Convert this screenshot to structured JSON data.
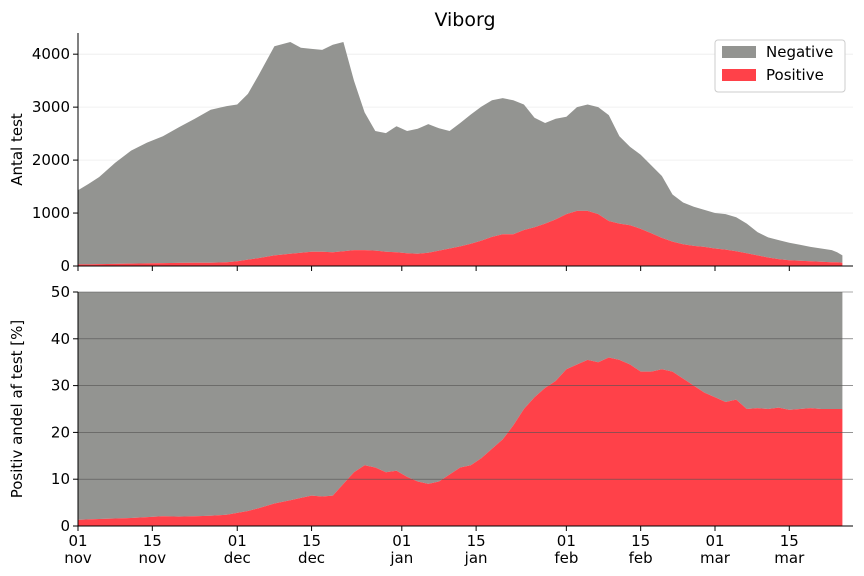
{
  "chart_data": [
    {
      "type": "area",
      "title": "Viborg",
      "ylabel": "Antal test",
      "ylim": [
        0,
        4400
      ],
      "yticks": [
        0,
        1000,
        2000,
        3000,
        4000
      ],
      "xlim": [
        0,
        146
      ],
      "legend": {
        "placement": "top-right",
        "entries": [
          "Negative",
          "Positive"
        ]
      },
      "x": [
        0,
        2,
        4,
        7,
        10,
        13,
        16,
        19,
        22,
        25,
        28,
        30,
        32,
        34,
        37,
        40,
        42,
        44,
        46,
        48,
        50,
        52,
        54,
        56,
        58,
        60,
        62,
        64,
        66,
        68,
        70,
        72,
        74,
        76,
        78,
        80,
        82,
        84,
        86,
        88,
        90,
        92,
        94,
        96,
        98,
        100,
        102,
        104,
        106,
        108,
        110,
        112,
        114,
        116,
        118,
        120,
        122,
        124,
        126,
        128,
        130,
        132,
        134,
        136,
        138,
        140,
        142,
        143,
        144
      ],
      "series": [
        {
          "name": "Positive",
          "color": "#ff4149",
          "values": [
            30,
            30,
            35,
            40,
            45,
            50,
            55,
            58,
            60,
            62,
            70,
            90,
            120,
            150,
            200,
            230,
            250,
            270,
            270,
            260,
            280,
            300,
            300,
            290,
            270,
            260,
            240,
            230,
            250,
            290,
            330,
            370,
            420,
            480,
            550,
            600,
            600,
            680,
            730,
            800,
            880,
            980,
            1040,
            1040,
            980,
            850,
            800,
            770,
            700,
            620,
            530,
            460,
            410,
            380,
            360,
            330,
            310,
            280,
            240,
            200,
            160,
            130,
            110,
            100,
            90,
            80,
            70,
            70,
            60
          ]
        },
        {
          "name": "Negative",
          "color": "#939491",
          "total": [
            1430,
            1550,
            1680,
            1950,
            2180,
            2330,
            2450,
            2620,
            2780,
            2950,
            3020,
            3050,
            3250,
            3600,
            4150,
            4230,
            4120,
            4100,
            4080,
            4180,
            4230,
            3500,
            2900,
            2550,
            2510,
            2640,
            2550,
            2590,
            2680,
            2600,
            2550,
            2700,
            2860,
            3010,
            3130,
            3170,
            3130,
            3050,
            2800,
            2700,
            2780,
            2820,
            3000,
            3050,
            3000,
            2850,
            2450,
            2250,
            2100,
            1900,
            1700,
            1350,
            1200,
            1120,
            1060,
            1000,
            980,
            920,
            800,
            640,
            540,
            490,
            440,
            400,
            360,
            330,
            300,
            260,
            200
          ]
        }
      ]
    },
    {
      "type": "area",
      "ylabel": "Positiv andel af test [%]",
      "ylim": [
        0,
        50
      ],
      "yticks": [
        0,
        10,
        20,
        30,
        40,
        50
      ],
      "xlim": [
        0,
        146
      ],
      "grid": true,
      "x": [
        0,
        2,
        4,
        7,
        10,
        13,
        16,
        19,
        22,
        25,
        28,
        30,
        32,
        34,
        37,
        40,
        42,
        44,
        46,
        48,
        50,
        52,
        54,
        56,
        58,
        60,
        62,
        64,
        66,
        68,
        70,
        72,
        74,
        76,
        78,
        80,
        82,
        84,
        86,
        88,
        90,
        92,
        94,
        96,
        98,
        100,
        102,
        104,
        106,
        108,
        110,
        112,
        114,
        116,
        118,
        120,
        122,
        124,
        126,
        128,
        130,
        132,
        134,
        136,
        138,
        140,
        142,
        143,
        144
      ],
      "series": [
        {
          "name": "Positive",
          "color": "#ff4149",
          "values": [
            1.3,
            1.4,
            1.5,
            1.6,
            1.7,
            1.9,
            2.1,
            2.0,
            2.1,
            2.2,
            2.4,
            2.8,
            3.2,
            3.8,
            4.8,
            5.5,
            6.0,
            6.5,
            6.3,
            6.5,
            9.0,
            11.5,
            13.0,
            12.5,
            11.5,
            11.8,
            10.5,
            9.5,
            9.0,
            9.5,
            11.0,
            12.5,
            13.0,
            14.5,
            16.5,
            18.5,
            21.5,
            25.0,
            27.5,
            29.5,
            31.0,
            33.5,
            34.5,
            35.5,
            35.0,
            36.0,
            35.5,
            34.5,
            33.0,
            33.0,
            33.5,
            33.0,
            31.5,
            30.0,
            28.5,
            27.5,
            26.5,
            27.0,
            25.0,
            25.2,
            25.0,
            25.3,
            24.8,
            25.0,
            25.2,
            25.0,
            25.0,
            25.0,
            25.0
          ]
        },
        {
          "name": "Negative",
          "color": "#939491",
          "total_percent": 50
        }
      ]
    }
  ],
  "x_axis": {
    "ticks": [
      {
        "x": 0,
        "day": "01",
        "month": "nov"
      },
      {
        "x": 14,
        "day": "15",
        "month": "nov"
      },
      {
        "x": 30,
        "day": "01",
        "month": "dec"
      },
      {
        "x": 44,
        "day": "15",
        "month": "dec"
      },
      {
        "x": 61,
        "day": "01",
        "month": "jan"
      },
      {
        "x": 75,
        "day": "15",
        "month": "jan"
      },
      {
        "x": 92,
        "day": "01",
        "month": "feb"
      },
      {
        "x": 106,
        "day": "15",
        "month": "feb"
      },
      {
        "x": 120,
        "day": "01",
        "month": "mar"
      },
      {
        "x": 134,
        "day": "15",
        "month": "mar"
      }
    ]
  }
}
